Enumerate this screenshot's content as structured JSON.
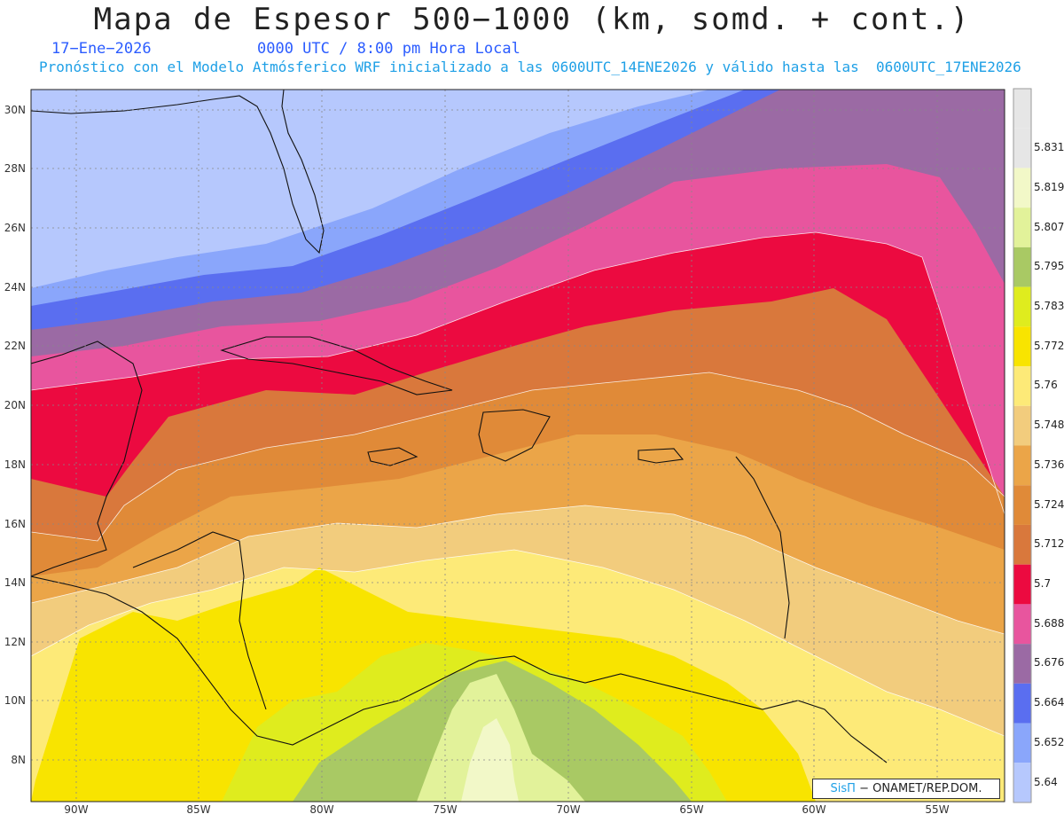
{
  "header": {
    "title": "Mapa de Espesor 500−1000 (km, somd. + cont.)",
    "date": "17−Ene−2026",
    "time": "0000 UTC / 8:00 pm Hora Local",
    "forecast_note": "Pronóstico con el Modelo Atmósferico WRF inicializado a las 0600UTC_14ENE2026 y válido hasta las  0600UTC_17ENE2026"
  },
  "map": {
    "lat_labels": [
      "30N",
      "28N",
      "26N",
      "24N",
      "22N",
      "20N",
      "18N",
      "16N",
      "14N",
      "12N",
      "10N",
      "8N"
    ],
    "lon_labels": [
      "90W",
      "85W",
      "80W",
      "75W",
      "70W",
      "65W",
      "60W",
      "55W"
    ]
  },
  "legend": {
    "values": [
      "5.831",
      "5.819",
      "5.807",
      "5.795",
      "5.783",
      "5.772",
      "5.76",
      "5.748",
      "5.736",
      "5.724",
      "5.712",
      "5.7",
      "5.688",
      "5.676",
      "5.664",
      "5.652",
      "5.64"
    ],
    "colors": [
      "#e6e6e6",
      "#f2f8c8",
      "#e2f29a",
      "#a9c964",
      "#dfec1e",
      "#f8e400",
      "#fdea78",
      "#f2cc7d",
      "#eba548",
      "#e08a38",
      "#d9783c",
      "#ec0a40",
      "#e8559e",
      "#9b6aa4",
      "#5a6ef0",
      "#8aa6fb",
      "#b6c8fd"
    ]
  },
  "credit": {
    "brand": "SisΠ",
    "text": "− ONAMET/REP.DOM."
  }
}
